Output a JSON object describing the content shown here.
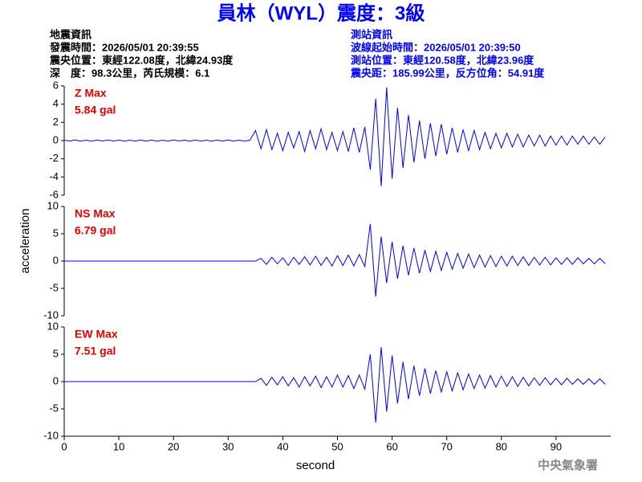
{
  "chart_data": {
    "type": "line",
    "title": "員林（WYL）震度：3級",
    "info_left": [
      "地震資訊",
      "發震時間：2026/05/01 20:39:55",
      "震央位置：東經122.08度，北緯24.93度",
      "深　度：98.3公里，芮氏規模：6.1"
    ],
    "info_right": [
      "測站資訊",
      "波線起始時間：2026/05/01 20:39:50",
      "測站位置：東經120.58度，北緯23.96度",
      "震央距：185.99公里，反方位角：54.91度"
    ],
    "x_label": "second",
    "y_label": "acceleration",
    "footer": "中央氣象署",
    "color": "#0000ff",
    "xlim": [
      0,
      100
    ],
    "xticks": [
      0,
      10,
      20,
      30,
      40,
      50,
      60,
      70,
      80,
      90
    ],
    "x": [
      0,
      1,
      2,
      3,
      4,
      5,
      6,
      7,
      8,
      9,
      10,
      11,
      12,
      13,
      14,
      15,
      16,
      17,
      18,
      19,
      20,
      21,
      22,
      23,
      24,
      25,
      26,
      27,
      28,
      29,
      30,
      31,
      32,
      33,
      34,
      35,
      36,
      37,
      38,
      39,
      40,
      41,
      42,
      43,
      44,
      45,
      46,
      47,
      48,
      49,
      50,
      51,
      52,
      53,
      54,
      55,
      56,
      57,
      58,
      59,
      60,
      61,
      62,
      63,
      64,
      65,
      66,
      67,
      68,
      69,
      70,
      71,
      72,
      73,
      74,
      75,
      76,
      77,
      78,
      79,
      80,
      81,
      82,
      83,
      84,
      85,
      86,
      87,
      88,
      89,
      90,
      91,
      92,
      93,
      94,
      95,
      96,
      97,
      98,
      99
    ],
    "panels": [
      {
        "name": "Z Max",
        "max_label": "5.84 gal",
        "ylim": [
          -6,
          6
        ],
        "yticks": [
          -6,
          -4,
          -2,
          0,
          2,
          4,
          6
        ],
        "values": [
          0.05,
          -0.05,
          0.08,
          -0.06,
          0.04,
          -0.07,
          0.05,
          -0.04,
          0.06,
          -0.05,
          0.05,
          -0.06,
          0.04,
          -0.05,
          0.07,
          -0.05,
          0.05,
          -0.06,
          0.04,
          -0.05,
          0.06,
          -0.04,
          0.05,
          -0.07,
          0.05,
          -0.05,
          0.04,
          -0.06,
          0.05,
          -0.05,
          0.06,
          -0.05,
          0.04,
          -0.05,
          0.05,
          1.1,
          -0.9,
          1.2,
          -1.0,
          0.8,
          -1.1,
          0.9,
          -0.8,
          1.0,
          -1.2,
          1.1,
          -0.9,
          1.3,
          -1.0,
          0.9,
          -1.1,
          1.0,
          -1.2,
          1.4,
          -1.3,
          1.5,
          -3.2,
          4.6,
          -5.0,
          5.84,
          -4.2,
          3.6,
          -3.0,
          2.8,
          -2.4,
          2.2,
          -2.0,
          1.9,
          -1.7,
          1.8,
          -1.5,
          1.4,
          -1.3,
          1.2,
          -1.1,
          1.1,
          -1.0,
          0.9,
          -0.9,
          0.8,
          -0.8,
          0.8,
          -0.7,
          0.7,
          -0.7,
          0.6,
          -0.6,
          0.6,
          -0.6,
          0.5,
          -0.5,
          0.5,
          -0.5,
          0.5,
          -0.4,
          0.5,
          -0.4,
          0.4,
          -0.4,
          0.4
        ]
      },
      {
        "name": "NS Max",
        "max_label": "6.79 gal",
        "ylim": [
          -10,
          10
        ],
        "yticks": [
          -10,
          -5,
          0,
          5,
          10
        ],
        "values": [
          0,
          0,
          0,
          0,
          0,
          0,
          0,
          0,
          0,
          0,
          0,
          0,
          0,
          0,
          0,
          0,
          0,
          0,
          0,
          0,
          0,
          0,
          0,
          0,
          0,
          0,
          0,
          0,
          0,
          0,
          0,
          0,
          0,
          0,
          0,
          0,
          0.5,
          -0.6,
          0.7,
          -0.5,
          0.6,
          -0.8,
          0.7,
          -0.6,
          0.8,
          -0.7,
          0.9,
          -0.8,
          0.7,
          -0.9,
          1.0,
          -0.8,
          1.1,
          -0.9,
          1.2,
          -1.0,
          6.79,
          -6.5,
          4.5,
          -4.0,
          3.5,
          -3.2,
          2.8,
          -2.6,
          2.4,
          -2.2,
          2.0,
          -1.9,
          1.8,
          -1.7,
          1.6,
          -1.5,
          1.4,
          -1.3,
          1.3,
          -1.2,
          1.1,
          -1.1,
          1.0,
          -1.0,
          0.9,
          -0.9,
          0.9,
          -0.8,
          0.8,
          -0.8,
          0.7,
          -0.7,
          0.7,
          -0.7,
          0.6,
          -0.6,
          0.6,
          -0.6,
          0.6,
          -0.5,
          0.5,
          -0.5,
          0.5,
          -0.5
        ]
      },
      {
        "name": "EW Max",
        "max_label": "7.51 gal",
        "ylim": [
          -10,
          10
        ],
        "yticks": [
          -10,
          -5,
          0,
          5,
          10
        ],
        "values": [
          0,
          0,
          0,
          0,
          0,
          0,
          0,
          0,
          0,
          0,
          0,
          0,
          0,
          0,
          0,
          0,
          0,
          0,
          0,
          0,
          0,
          0,
          0,
          0,
          0,
          0,
          0,
          0,
          0,
          0,
          0,
          0,
          0,
          0,
          0,
          0,
          0.6,
          -0.7,
          0.8,
          -0.6,
          0.9,
          -0.8,
          0.7,
          -1.0,
          0.9,
          -0.8,
          1.0,
          -1.1,
          0.9,
          -1.0,
          1.2,
          -1.0,
          1.1,
          -1.3,
          1.2,
          -1.4,
          5.0,
          -7.51,
          6.3,
          -5.5,
          4.8,
          -4.0,
          3.6,
          -3.2,
          2.9,
          -2.6,
          2.4,
          -2.2,
          2.0,
          -1.9,
          1.8,
          -1.7,
          1.6,
          -1.5,
          1.4,
          -1.3,
          1.2,
          -1.2,
          1.1,
          -1.0,
          1.0,
          -0.9,
          0.9,
          -0.9,
          0.8,
          -0.8,
          0.7,
          -0.7,
          0.7,
          -0.6,
          0.6,
          -0.6,
          0.6,
          -0.5,
          0.5,
          -0.5,
          0.5,
          -0.5,
          0.5,
          -0.5
        ]
      }
    ]
  }
}
